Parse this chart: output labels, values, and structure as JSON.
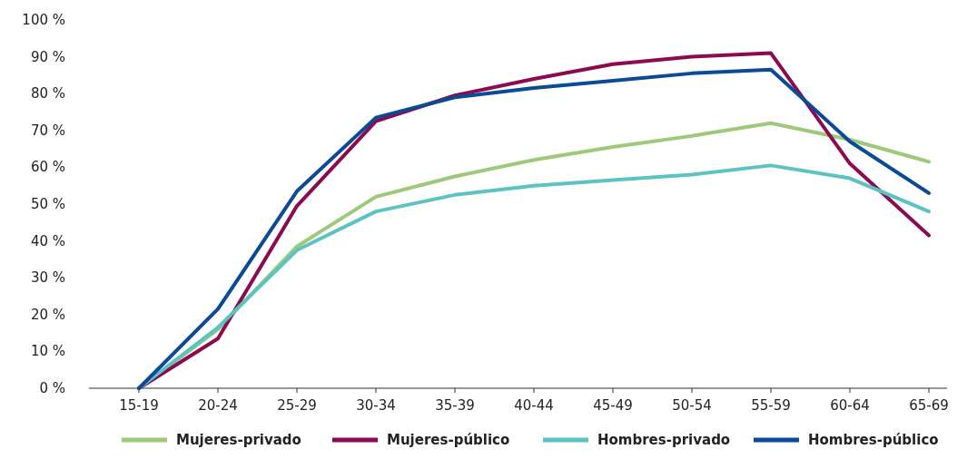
{
  "chart_data": {
    "type": "line",
    "categories": [
      "15-19",
      "20-24",
      "25-29",
      "30-34",
      "35-39",
      "40-44",
      "45-49",
      "50-54",
      "55-59",
      "60-64",
      "65-69"
    ],
    "series": [
      {
        "name": "Mujeres-privado",
        "color": "#9dc97a",
        "values": [
          0,
          16,
          38.5,
          52,
          57.5,
          62,
          65.5,
          68.5,
          72,
          67.5,
          61.5
        ]
      },
      {
        "name": "Mujeres-público",
        "color": "#8b0a50",
        "values": [
          0,
          13.5,
          49.5,
          72.5,
          79.5,
          84,
          88,
          90,
          91,
          61,
          41.5
        ]
      },
      {
        "name": "Hombres-privado",
        "color": "#5bc3c1",
        "values": [
          0,
          16.5,
          37.5,
          48,
          52.5,
          55,
          56.5,
          58,
          60.5,
          57,
          48
        ]
      },
      {
        "name": "Hombres-público",
        "color": "#0a4a97",
        "values": [
          0,
          21.5,
          53.5,
          73.5,
          79,
          81.5,
          83.5,
          85.5,
          86.5,
          67,
          53
        ]
      }
    ],
    "ylim": [
      0,
      100
    ],
    "yticks": [
      {
        "value": 0,
        "label": "0 %"
      },
      {
        "value": 10,
        "label": "10 %"
      },
      {
        "value": 20,
        "label": "20 %"
      },
      {
        "value": 30,
        "label": "30 %"
      },
      {
        "value": 40,
        "label": "40 %"
      },
      {
        "value": 50,
        "label": "50 %"
      },
      {
        "value": 60,
        "label": "60 %"
      },
      {
        "value": 70,
        "label": "70 %"
      },
      {
        "value": 80,
        "label": "80 %"
      },
      {
        "value": 90,
        "label": "90 %"
      },
      {
        "value": 100,
        "label": "100 %"
      }
    ],
    "legend": "bottom",
    "marker": "none",
    "line_style": "solid"
  }
}
